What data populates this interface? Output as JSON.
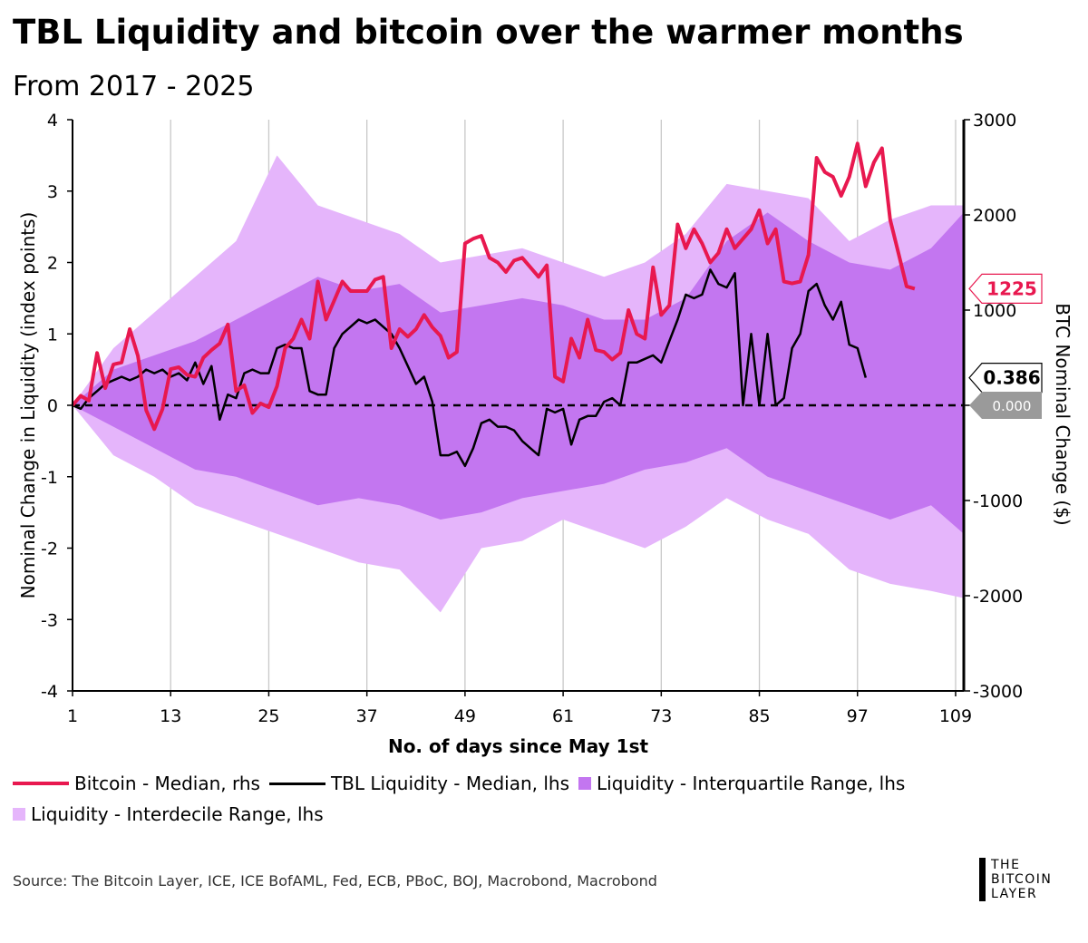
{
  "title": "TBL Liquidity and bitcoin over the warmer months",
  "subtitle": "From 2017 - 2025",
  "source": "Source: The Bitcoin Layer, ICE, ICE BofAML, Fed, ECB, PBoC, BOJ, Macrobond, Macrobond",
  "logo": {
    "line1": "THE",
    "line2": "BITCOIN",
    "line3": "LAYER"
  },
  "legend": {
    "btc": "Bitcoin - Median, rhs",
    "tbl": "TBL Liquidity - Median, lhs",
    "iqr": "Liquidity - Interquartile Range, lhs",
    "idr": "Liquidity - Interdecile Range, lhs"
  },
  "callouts": {
    "btc_last": "1225",
    "tbl_last": "0.386",
    "zero": "0.000"
  },
  "colors": {
    "btc": "#e8184f",
    "tbl": "#000000",
    "iqr": "#c376f0",
    "idr": "#e5b5fb",
    "zero_tag": "#9a9a9a"
  },
  "chart_data": {
    "type": "line",
    "xlabel": "No. of days since May 1st",
    "ylabel_left": "Nominal Change in Liquidity (index points)",
    "ylabel_right": "BTC Nominal Change ($)",
    "xlim": [
      1,
      110
    ],
    "ylim_left": [
      -4,
      4
    ],
    "ylim_right": [
      -3000,
      3000
    ],
    "x_ticks": [
      1,
      13,
      25,
      37,
      49,
      61,
      73,
      85,
      97,
      109
    ],
    "y_ticks_left": [
      4,
      3,
      2,
      1,
      0,
      -1,
      -2,
      -3,
      -4
    ],
    "y_ticks_right": [
      3000,
      2000,
      1000,
      0,
      -1000,
      -2000,
      -3000
    ],
    "grid": "vertical",
    "reference_line": {
      "y": 0,
      "style": "dashed"
    },
    "series": [
      {
        "name": "Bitcoin - Median, rhs",
        "axis": "right",
        "style": "line",
        "points": [
          [
            1,
            0
          ],
          [
            2,
            100
          ],
          [
            3,
            50
          ],
          [
            4,
            550
          ],
          [
            5,
            180
          ],
          [
            6,
            430
          ],
          [
            7,
            450
          ],
          [
            8,
            800
          ],
          [
            9,
            520
          ],
          [
            10,
            -50
          ],
          [
            11,
            -250
          ],
          [
            12,
            -40
          ],
          [
            13,
            380
          ],
          [
            14,
            400
          ],
          [
            15,
            320
          ],
          [
            16,
            300
          ],
          [
            17,
            500
          ],
          [
            18,
            580
          ],
          [
            19,
            650
          ],
          [
            20,
            850
          ],
          [
            21,
            150
          ],
          [
            22,
            210
          ],
          [
            23,
            -80
          ],
          [
            24,
            20
          ],
          [
            25,
            -20
          ],
          [
            26,
            200
          ],
          [
            27,
            600
          ],
          [
            28,
            700
          ],
          [
            29,
            900
          ],
          [
            30,
            700
          ],
          [
            31,
            1300
          ],
          [
            32,
            900
          ],
          [
            33,
            1100
          ],
          [
            34,
            1300
          ],
          [
            35,
            1200
          ],
          [
            36,
            1200
          ],
          [
            37,
            1200
          ],
          [
            38,
            1320
          ],
          [
            39,
            1350
          ],
          [
            40,
            600
          ],
          [
            41,
            800
          ],
          [
            42,
            720
          ],
          [
            43,
            800
          ],
          [
            44,
            950
          ],
          [
            45,
            820
          ],
          [
            46,
            730
          ],
          [
            47,
            500
          ],
          [
            48,
            560
          ],
          [
            49,
            1700
          ],
          [
            50,
            1750
          ],
          [
            51,
            1780
          ],
          [
            52,
            1550
          ],
          [
            53,
            1500
          ],
          [
            54,
            1400
          ],
          [
            55,
            1520
          ],
          [
            56,
            1550
          ],
          [
            57,
            1450
          ],
          [
            58,
            1350
          ],
          [
            59,
            1470
          ],
          [
            60,
            300
          ],
          [
            61,
            250
          ],
          [
            62,
            700
          ],
          [
            63,
            500
          ],
          [
            64,
            900
          ],
          [
            65,
            580
          ],
          [
            66,
            560
          ],
          [
            67,
            480
          ],
          [
            68,
            550
          ],
          [
            69,
            1000
          ],
          [
            70,
            750
          ],
          [
            71,
            700
          ],
          [
            72,
            1450
          ],
          [
            73,
            950
          ],
          [
            74,
            1050
          ],
          [
            75,
            1900
          ],
          [
            76,
            1650
          ],
          [
            77,
            1850
          ],
          [
            78,
            1700
          ],
          [
            79,
            1500
          ],
          [
            80,
            1600
          ],
          [
            81,
            1850
          ],
          [
            82,
            1650
          ],
          [
            83,
            1750
          ],
          [
            84,
            1850
          ],
          [
            85,
            2050
          ],
          [
            86,
            1700
          ],
          [
            87,
            1850
          ],
          [
            88,
            1300
          ],
          [
            89,
            1280
          ],
          [
            90,
            1300
          ],
          [
            91,
            1580
          ],
          [
            92,
            2600
          ],
          [
            93,
            2450
          ],
          [
            94,
            2400
          ],
          [
            95,
            2200
          ],
          [
            96,
            2400
          ],
          [
            97,
            2750
          ],
          [
            98,
            2300
          ],
          [
            99,
            2550
          ],
          [
            100,
            2700
          ],
          [
            101,
            1950
          ],
          [
            102,
            1600
          ],
          [
            103,
            1250
          ],
          [
            104,
            1225
          ]
        ]
      },
      {
        "name": "TBL Liquidity - Median, lhs",
        "axis": "left",
        "style": "line",
        "points": [
          [
            1,
            0
          ],
          [
            2,
            -0.05
          ],
          [
            3,
            0.1
          ],
          [
            4,
            0.2
          ],
          [
            5,
            0.3
          ],
          [
            6,
            0.35
          ],
          [
            7,
            0.4
          ],
          [
            8,
            0.35
          ],
          [
            9,
            0.4
          ],
          [
            10,
            0.5
          ],
          [
            11,
            0.45
          ],
          [
            12,
            0.5
          ],
          [
            13,
            0.4
          ],
          [
            14,
            0.45
          ],
          [
            15,
            0.35
          ],
          [
            16,
            0.6
          ],
          [
            17,
            0.3
          ],
          [
            18,
            0.55
          ],
          [
            19,
            -0.2
          ],
          [
            20,
            0.15
          ],
          [
            21,
            0.1
          ],
          [
            22,
            0.45
          ],
          [
            23,
            0.5
          ],
          [
            24,
            0.45
          ],
          [
            25,
            0.45
          ],
          [
            26,
            0.8
          ],
          [
            27,
            0.85
          ],
          [
            28,
            0.8
          ],
          [
            29,
            0.8
          ],
          [
            30,
            0.2
          ],
          [
            31,
            0.15
          ],
          [
            32,
            0.15
          ],
          [
            33,
            0.8
          ],
          [
            34,
            1.0
          ],
          [
            35,
            1.1
          ],
          [
            36,
            1.2
          ],
          [
            37,
            1.15
          ],
          [
            38,
            1.2
          ],
          [
            39,
            1.1
          ],
          [
            40,
            1.0
          ],
          [
            41,
            0.8
          ],
          [
            42,
            0.55
          ],
          [
            43,
            0.3
          ],
          [
            44,
            0.4
          ],
          [
            45,
            0.05
          ],
          [
            46,
            -0.7
          ],
          [
            47,
            -0.7
          ],
          [
            48,
            -0.65
          ],
          [
            49,
            -0.85
          ],
          [
            50,
            -0.6
          ],
          [
            51,
            -0.25
          ],
          [
            52,
            -0.2
          ],
          [
            53,
            -0.3
          ],
          [
            54,
            -0.3
          ],
          [
            55,
            -0.35
          ],
          [
            56,
            -0.5
          ],
          [
            57,
            -0.6
          ],
          [
            58,
            -0.7
          ],
          [
            59,
            -0.05
          ],
          [
            60,
            -0.1
          ],
          [
            61,
            -0.05
          ],
          [
            62,
            -0.55
          ],
          [
            63,
            -0.2
          ],
          [
            64,
            -0.15
          ],
          [
            65,
            -0.15
          ],
          [
            66,
            0.05
          ],
          [
            67,
            0.1
          ],
          [
            68,
            0.0
          ],
          [
            69,
            0.6
          ],
          [
            70,
            0.6
          ],
          [
            71,
            0.65
          ],
          [
            72,
            0.7
          ],
          [
            73,
            0.6
          ],
          [
            74,
            0.9
          ],
          [
            75,
            1.2
          ],
          [
            76,
            1.55
          ],
          [
            77,
            1.5
          ],
          [
            78,
            1.55
          ],
          [
            79,
            1.9
          ],
          [
            80,
            1.7
          ],
          [
            81,
            1.65
          ],
          [
            82,
            1.85
          ],
          [
            83,
            0.0
          ],
          [
            84,
            1.0
          ],
          [
            85,
            0.0
          ],
          [
            86,
            1.0
          ],
          [
            87,
            0.0
          ],
          [
            88,
            0.1
          ],
          [
            89,
            0.8
          ],
          [
            90,
            1.0
          ],
          [
            91,
            1.6
          ],
          [
            92,
            1.7
          ],
          [
            93,
            1.4
          ],
          [
            94,
            1.2
          ],
          [
            95,
            1.45
          ],
          [
            96,
            0.85
          ],
          [
            97,
            0.8
          ],
          [
            98,
            0.386
          ]
        ]
      },
      {
        "name": "Liquidity - Interquartile Range, lhs",
        "axis": "left",
        "style": "band",
        "x": [
          1,
          6,
          11,
          16,
          21,
          26,
          31,
          36,
          41,
          46,
          51,
          56,
          61,
          66,
          71,
          76,
          81,
          86,
          91,
          96,
          101,
          106,
          110
        ],
        "upper": [
          0.0,
          0.5,
          0.7,
          0.9,
          1.2,
          1.5,
          1.8,
          1.6,
          1.7,
          1.3,
          1.4,
          1.5,
          1.4,
          1.2,
          1.2,
          1.5,
          2.3,
          2.7,
          2.3,
          2.0,
          1.9,
          2.2,
          2.7
        ],
        "lower": [
          0.0,
          -0.3,
          -0.6,
          -0.9,
          -1.0,
          -1.2,
          -1.4,
          -1.3,
          -1.4,
          -1.6,
          -1.5,
          -1.3,
          -1.2,
          -1.1,
          -0.9,
          -0.8,
          -0.6,
          -1.0,
          -1.2,
          -1.4,
          -1.6,
          -1.4,
          -1.8
        ]
      },
      {
        "name": "Liquidity - Interdecile Range, lhs",
        "axis": "left",
        "style": "band",
        "x": [
          1,
          6,
          11,
          16,
          21,
          26,
          31,
          36,
          41,
          46,
          51,
          56,
          61,
          66,
          71,
          76,
          81,
          86,
          91,
          96,
          101,
          106,
          110
        ],
        "upper": [
          0.0,
          0.8,
          1.3,
          1.8,
          2.3,
          3.5,
          2.8,
          2.6,
          2.4,
          2.0,
          2.1,
          2.2,
          2.0,
          1.8,
          2.0,
          2.4,
          3.1,
          3.0,
          2.9,
          2.3,
          2.6,
          2.8,
          2.8
        ],
        "lower": [
          0.0,
          -0.7,
          -1.0,
          -1.4,
          -1.6,
          -1.8,
          -2.0,
          -2.2,
          -2.3,
          -2.9,
          -2.0,
          -1.9,
          -1.6,
          -1.8,
          -2.0,
          -1.7,
          -1.3,
          -1.6,
          -1.8,
          -2.3,
          -2.5,
          -2.6,
          -2.7
        ]
      }
    ]
  }
}
